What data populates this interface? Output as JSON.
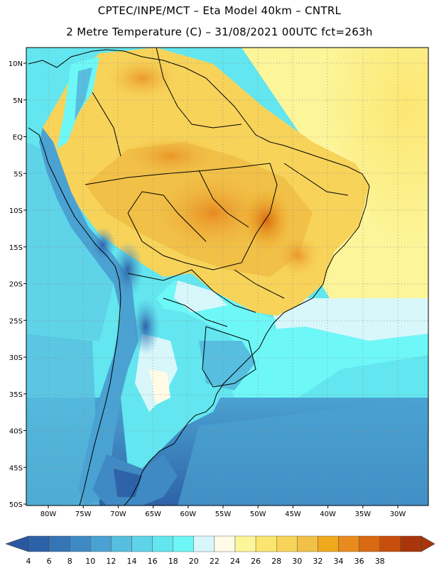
{
  "header": {
    "line1": "CPTEC/INPE/MCT  –  Eta Model 40km  –  CNTRL",
    "line2": "2 Metre Temperature (C)  –  31/08/2021 00UTC fct=263h"
  },
  "map": {
    "lat_ticks": [
      "10N",
      "5N",
      "EQ",
      "5S",
      "10S",
      "15S",
      "20S",
      "25S",
      "30S",
      "35S",
      "40S",
      "45S",
      "50S"
    ],
    "lon_ticks": [
      "80W",
      "75W",
      "70W",
      "65W",
      "60W",
      "55W",
      "50W",
      "45W",
      "40W",
      "35W",
      "30W"
    ]
  },
  "colorbar": {
    "labels": [
      "4",
      "6",
      "8",
      "10",
      "12",
      "14",
      "16",
      "18",
      "20",
      "22",
      "24",
      "26",
      "28",
      "30",
      "32",
      "34",
      "36",
      "38"
    ],
    "colors": [
      "#2e62a8",
      "#3574b5",
      "#3f8ac4",
      "#4aa2d2",
      "#57bedf",
      "#5fd3e8",
      "#63e6ef",
      "#6ef7f7",
      "#d8f7fb",
      "#fffbe6",
      "#fdf59a",
      "#fbe56e",
      "#f7d35a",
      "#f1c047",
      "#f0a81c",
      "#e88b1f",
      "#d96a12",
      "#c74e0c",
      "#a8360a"
    ],
    "low_color": "#2a58a0",
    "high_color": "#a8360a"
  }
}
